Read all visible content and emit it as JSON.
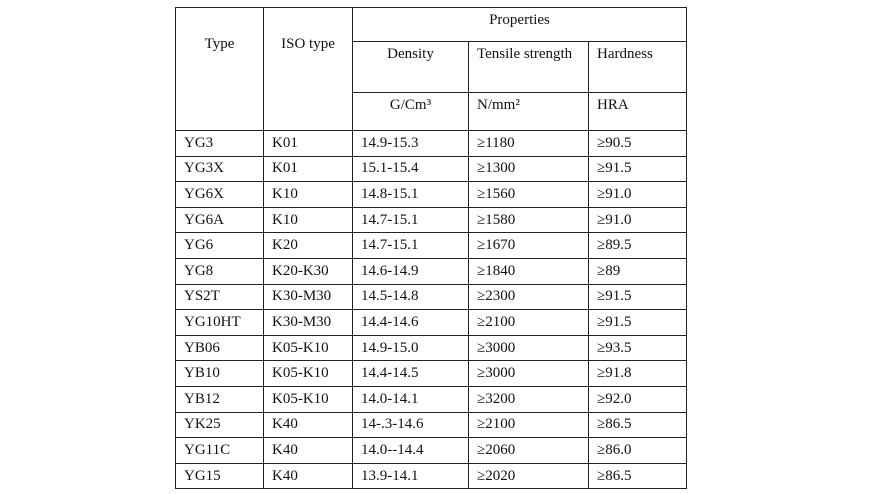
{
  "table": {
    "header": {
      "type": "Type",
      "iso_type": "ISO type",
      "properties": "Properties",
      "columns": [
        "Density",
        "Tensile strength",
        "Hardness"
      ],
      "units": [
        "G/Cm³",
        "N/mm²",
        "HRA"
      ]
    },
    "rows": [
      [
        "YG3",
        "K01",
        "14.9-15.3",
        "≥1180",
        "≥90.5"
      ],
      [
        "YG3X",
        "K01",
        "15.1-15.4",
        "≥1300",
        "≥91.5"
      ],
      [
        "YG6X",
        "K10",
        "14.8-15.1",
        "≥1560",
        "≥91.0"
      ],
      [
        "YG6A",
        "K10",
        "14.7-15.1",
        "≥1580",
        "≥91.0"
      ],
      [
        "YG6",
        "K20",
        "14.7-15.1",
        "≥1670",
        "≥89.5"
      ],
      [
        "YG8",
        "K20-K30",
        "14.6-14.9",
        "≥1840",
        "≥89"
      ],
      [
        "YS2T",
        "K30-M30",
        "14.5-14.8",
        "≥2300",
        "≥91.5"
      ],
      [
        "YG10HT",
        "K30-M30",
        "14.4-14.6",
        "≥2100",
        "≥91.5"
      ],
      [
        "YB06",
        "K05-K10",
        "14.9-15.0",
        "≥3000",
        "≥93.5"
      ],
      [
        "YB10",
        "K05-K10",
        "14.4-14.5",
        "≥3000",
        "≥91.8"
      ],
      [
        "YB12",
        "K05-K10",
        "14.0-14.1",
        "≥3200",
        "≥92.0"
      ],
      [
        "YK25",
        "K40",
        "14-.3-14.6",
        "≥2100",
        "≥86.5"
      ],
      [
        "YG11C",
        "K40",
        "14.0--14.4",
        "≥2060",
        "≥86.0"
      ],
      [
        "YG15",
        "K40",
        "13.9-14.1",
        "≥2020",
        "≥86.5"
      ]
    ]
  }
}
